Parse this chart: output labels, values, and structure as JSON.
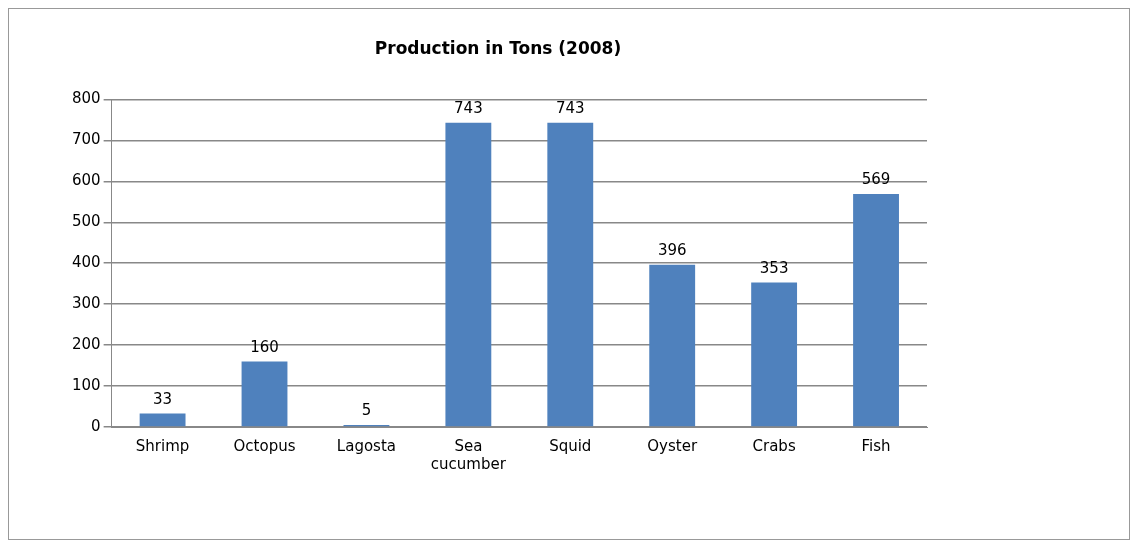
{
  "chart_data": {
    "type": "bar",
    "title": "Production in Tons (2008)",
    "categories": [
      "Shrimp",
      "Octopus",
      "Lagosta",
      "Sea cucumber",
      "Squid",
      "Oyster",
      "Crabs",
      "Fish"
    ],
    "values": [
      33,
      160,
      5,
      743,
      743,
      396,
      353,
      569
    ],
    "color": "#4f81bd",
    "ylim": [
      0,
      800
    ],
    "yticks": [
      0,
      100,
      200,
      300,
      400,
      500,
      600,
      700,
      800
    ],
    "grid": "y",
    "data_labels": true,
    "legend": false
  }
}
